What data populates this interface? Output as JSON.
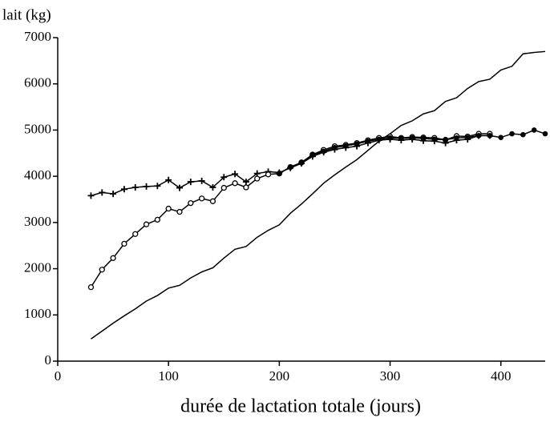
{
  "chart_data": {
    "type": "line",
    "y_label": "lait (kg)",
    "x_label": "durée de lactation totale (jours)",
    "x": [
      30,
      40,
      50,
      60,
      70,
      80,
      90,
      100,
      110,
      120,
      130,
      140,
      150,
      160,
      170,
      180,
      190,
      200,
      210,
      220,
      230,
      240,
      250,
      260,
      270,
      280,
      290,
      300,
      310,
      320,
      330,
      340,
      350,
      360,
      370,
      380,
      390,
      400,
      410,
      420,
      430,
      440
    ],
    "series": [
      {
        "color": "#000000",
        "marker": "none",
        "values": [
          480,
          650,
          820,
          980,
          1130,
          1300,
          1420,
          1580,
          1640,
          1800,
          1930,
          2020,
          2230,
          2420,
          2480,
          2680,
          2830,
          2950,
          3200,
          3400,
          3620,
          3850,
          4030,
          4200,
          4360,
          4560,
          4760,
          4920,
          5100,
          5200,
          5350,
          5420,
          5620,
          5700,
          5900,
          6050,
          6100,
          6300,
          6380,
          6650,
          6680,
          6700
        ]
      },
      {
        "color": "#000000",
        "marker": "plus",
        "values": [
          3580,
          3650,
          3620,
          3720,
          3760,
          3780,
          3790,
          3920,
          3750,
          3880,
          3900,
          3760,
          3980,
          4050,
          3880,
          4060,
          4100,
          4080,
          4180,
          4280,
          4430,
          4520,
          4580,
          4620,
          4650,
          4720,
          4780,
          4800,
          4780,
          4800,
          4770,
          4760,
          4720,
          4780,
          4800,
          4880,
          4880,
          null,
          null,
          null,
          null,
          null
        ]
      },
      {
        "color": "#000000",
        "marker": "open-circle",
        "values": [
          1600,
          1980,
          2230,
          2540,
          2750,
          2960,
          3060,
          3300,
          3230,
          3420,
          3520,
          3460,
          3750,
          3850,
          3760,
          3950,
          4040,
          4060,
          4200,
          4300,
          4470,
          4570,
          4650,
          4680,
          4720,
          4780,
          4830,
          4860,
          4830,
          4850,
          4840,
          4830,
          4790,
          4870,
          4860,
          4920,
          4920,
          null,
          null,
          null,
          null,
          null
        ]
      },
      {
        "color": "#000000",
        "marker": "filled-circle",
        "values": [
          null,
          null,
          null,
          null,
          null,
          null,
          null,
          null,
          null,
          null,
          null,
          null,
          null,
          null,
          null,
          null,
          null,
          4060,
          4200,
          4290,
          4460,
          4540,
          4620,
          4660,
          4700,
          4760,
          4800,
          4830,
          4820,
          4830,
          4820,
          4800,
          4790,
          4830,
          4840,
          4880,
          4880,
          4840,
          4920,
          4900,
          5000,
          4920
        ]
      }
    ],
    "xlim": [
      0,
      440
    ],
    "ylim": [
      0,
      7000
    ],
    "xticks": [
      0,
      100,
      200,
      300,
      400
    ],
    "yticks": [
      0,
      1000,
      2000,
      3000,
      4000,
      5000,
      6000,
      7000
    ],
    "grid": false
  }
}
